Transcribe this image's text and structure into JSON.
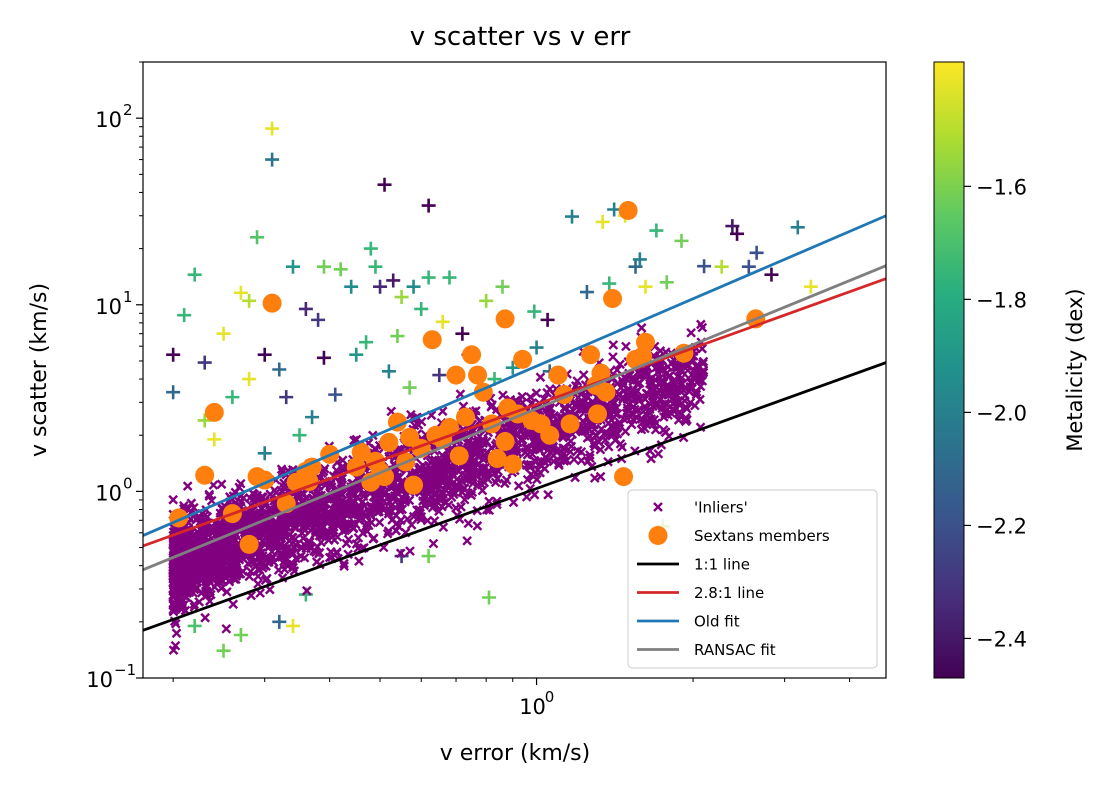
{
  "chart_data": {
    "type": "scatter",
    "title": "v scatter vs v err",
    "xlabel": "v error (km/s)",
    "ylabel": "v scatter (km/s)",
    "xscale": "log",
    "yscale": "log",
    "xlim": [
      0.175,
      4.7
    ],
    "ylim": [
      0.1,
      200
    ],
    "grid": false,
    "legend_position": "lower-right",
    "x_ticks": [
      {
        "value": 1.0,
        "base": "10",
        "exp": "0"
      }
    ],
    "y_ticks": [
      {
        "value": 0.1,
        "base": "10",
        "exp": "−1"
      },
      {
        "value": 1.0,
        "base": "10",
        "exp": "0"
      },
      {
        "value": 10.0,
        "base": "10",
        "exp": "1"
      },
      {
        "value": 100.0,
        "base": "10",
        "exp": "2"
      }
    ],
    "colorbar": {
      "label": "Metalicity (dex)",
      "colormap": "viridis",
      "range": [
        -2.47,
        -1.38
      ],
      "ticks": [
        {
          "value": -2.4,
          "label": "−2.4"
        },
        {
          "value": -2.2,
          "label": "−2.2"
        },
        {
          "value": -2.0,
          "label": "−2.0"
        },
        {
          "value": -1.8,
          "label": "−1.8"
        },
        {
          "value": -1.6,
          "label": "−1.6"
        }
      ]
    },
    "colors": {
      "inliers": "#800080",
      "members": "#ff7f0e",
      "one_to_one": "#000000",
      "ratio_line": "#d62728",
      "old_fit": "#1f77b4",
      "ransac_fit": "#7f7f7f"
    },
    "lines": [
      {
        "name": "1:1 line",
        "color": "#000000",
        "points": [
          [
            0.175,
            0.18
          ],
          [
            4.7,
            4.9
          ]
        ]
      },
      {
        "name": "2.8:1 line",
        "color": "#d62728",
        "points": [
          [
            0.175,
            0.51
          ],
          [
            4.7,
            13.8
          ]
        ]
      },
      {
        "name": "Old fit",
        "color": "#1f77b4",
        "points": [
          [
            0.175,
            0.58
          ],
          [
            4.7,
            30.0
          ]
        ]
      },
      {
        "name": "RANSAC fit",
        "color": "#7f7f7f",
        "points": [
          [
            0.175,
            0.38
          ],
          [
            4.7,
            16.2
          ]
        ]
      }
    ],
    "legend": [
      {
        "label": "'Inliers'",
        "marker": "x",
        "color": "#800080"
      },
      {
        "label": "Sextans members",
        "marker": "o",
        "color": "#ff7f0e"
      },
      {
        "label": "1:1 line",
        "marker": "line",
        "color": "#000000"
      },
      {
        "label": "2.8:1 line",
        "marker": "line",
        "color": "#d62728"
      },
      {
        "label": "Old fit",
        "marker": "line",
        "color": "#1f77b4"
      },
      {
        "label": "RANSAC fit",
        "marker": "line",
        "color": "#7f7f7f"
      }
    ],
    "inliers_band": {
      "name": "'Inliers'",
      "x_range": [
        0.2,
        2.1
      ],
      "y_over_x_log10_mean": 0.3,
      "log10_spread": 0.13,
      "approx_count": 2600
    },
    "outliers": [
      [
        0.31,
        88,
        -1.42
      ],
      [
        0.31,
        60,
        -2.05
      ],
      [
        0.51,
        44,
        -2.47
      ],
      [
        0.62,
        34,
        -2.47
      ],
      [
        0.29,
        23,
        -1.68
      ],
      [
        0.68,
        14,
        -1.75
      ],
      [
        0.72,
        7,
        -2.47
      ],
      [
        0.2,
        5.4,
        -2.47
      ],
      [
        0.22,
        14.5,
        -1.75
      ],
      [
        0.21,
        8.8,
        -1.75
      ],
      [
        0.25,
        7,
        -1.42
      ],
      [
        0.27,
        11.6,
        -1.42
      ],
      [
        0.28,
        10.5,
        -1.5
      ],
      [
        0.34,
        16,
        -1.9
      ],
      [
        0.36,
        9.5,
        -2.35
      ],
      [
        0.38,
        8.3,
        -2.3
      ],
      [
        0.39,
        16,
        -1.62
      ],
      [
        0.42,
        15.5,
        -1.62
      ],
      [
        0.44,
        12.5,
        -1.95
      ],
      [
        0.48,
        20,
        -1.75
      ],
      [
        0.49,
        16,
        -1.75
      ],
      [
        0.5,
        12.5,
        -2.35
      ],
      [
        0.53,
        13.5,
        -2.4
      ],
      [
        0.55,
        11,
        -1.55
      ],
      [
        0.58,
        12.5,
        -1.95
      ],
      [
        0.6,
        9.5,
        -1.75
      ],
      [
        0.62,
        14,
        -1.75
      ],
      [
        0.66,
        8.1,
        -1.42
      ],
      [
        0.8,
        10.5,
        -1.55
      ],
      [
        0.86,
        12.5,
        -1.62
      ],
      [
        0.99,
        9.2,
        -1.75
      ],
      [
        1.05,
        8.3,
        -2.47
      ],
      [
        1.17,
        29.7,
        -2.0
      ],
      [
        1.25,
        11.7,
        -2.1
      ],
      [
        1.34,
        27.8,
        -1.42
      ],
      [
        1.38,
        13,
        -1.75
      ],
      [
        1.41,
        32.4,
        -2.0
      ],
      [
        1.48,
        30,
        -1.42
      ],
      [
        1.55,
        16,
        -2.1
      ],
      [
        1.58,
        17.5,
        -2.0
      ],
      [
        1.62,
        12.5,
        -1.42
      ],
      [
        1.7,
        25,
        -1.75
      ],
      [
        1.78,
        13.2,
        -1.62
      ],
      [
        1.9,
        22,
        -1.62
      ],
      [
        2.1,
        16.1,
        -2.2
      ],
      [
        2.27,
        16,
        -1.5
      ],
      [
        2.38,
        26.4,
        -2.4
      ],
      [
        2.43,
        24,
        -2.47
      ],
      [
        2.56,
        16,
        -2.2
      ],
      [
        2.65,
        19,
        -2.2
      ],
      [
        2.83,
        14.5,
        -2.47
      ],
      [
        3.18,
        26,
        -2.0
      ],
      [
        3.37,
        12.5,
        -1.42
      ],
      [
        0.22,
        0.19,
        -1.7
      ],
      [
        0.25,
        0.14,
        -1.62
      ],
      [
        0.27,
        0.17,
        -1.62
      ],
      [
        0.32,
        0.2,
        -2.1
      ],
      [
        0.34,
        0.19,
        -1.42
      ],
      [
        0.36,
        0.28,
        -1.75
      ],
      [
        0.55,
        0.45,
        -2.3
      ],
      [
        0.62,
        0.45,
        -1.62
      ],
      [
        0.81,
        0.27,
        -1.62
      ],
      [
        1.75,
        0.65,
        -1.55
      ],
      [
        0.2,
        3.4,
        -2.1
      ],
      [
        0.23,
        2.4,
        -1.55
      ],
      [
        0.26,
        3.2,
        -1.75
      ],
      [
        0.28,
        4,
        -1.42
      ],
      [
        0.3,
        5.4,
        -2.47
      ],
      [
        0.33,
        3.2,
        -2.3
      ],
      [
        0.37,
        2.5,
        -2.0
      ],
      [
        0.41,
        3.3,
        -2.2
      ],
      [
        0.45,
        5.4,
        -1.9
      ],
      [
        0.47,
        6.3,
        -1.75
      ],
      [
        0.52,
        4.4,
        -2.0
      ],
      [
        0.57,
        3.6,
        -1.62
      ],
      [
        0.65,
        4.2,
        -2.3
      ],
      [
        0.74,
        5.4,
        -2.47
      ],
      [
        0.9,
        4.6,
        -1.9
      ],
      [
        1.06,
        4.4,
        -2.1
      ],
      [
        1.2,
        3.4,
        -1.62
      ],
      [
        0.24,
        1.9,
        -1.42
      ],
      [
        0.3,
        1.6,
        -2.0
      ],
      [
        0.35,
        2.0,
        -1.75
      ],
      [
        0.44,
        1.4,
        -1.62
      ],
      [
        0.23,
        4.9,
        -2.3
      ],
      [
        0.32,
        4.5,
        -2.1
      ],
      [
        0.39,
        5.2,
        -2.47
      ],
      [
        0.54,
        6.8,
        -1.62
      ],
      [
        0.83,
        4.0,
        -1.75
      ],
      [
        1.0,
        5.9,
        -2.0
      ]
    ],
    "members": [
      [
        0.205,
        0.72
      ],
      [
        0.23,
        1.22
      ],
      [
        0.24,
        2.65
      ],
      [
        0.26,
        0.76
      ],
      [
        0.28,
        0.52
      ],
      [
        0.29,
        1.2
      ],
      [
        0.3,
        1.15
      ],
      [
        0.31,
        10.2
      ],
      [
        0.33,
        0.86
      ],
      [
        0.345,
        1.12
      ],
      [
        0.36,
        1.28
      ],
      [
        0.365,
        1.13
      ],
      [
        0.37,
        1.35
      ],
      [
        0.4,
        1.58
      ],
      [
        0.45,
        1.35
      ],
      [
        0.46,
        1.62
      ],
      [
        0.48,
        1.12
      ],
      [
        0.49,
        1.45
      ],
      [
        0.5,
        1.28
      ],
      [
        0.51,
        1.2
      ],
      [
        0.52,
        1.83
      ],
      [
        0.54,
        2.35
      ],
      [
        0.56,
        1.44
      ],
      [
        0.57,
        1.95
      ],
      [
        0.58,
        1.08
      ],
      [
        0.6,
        1.7
      ],
      [
        0.63,
        6.5
      ],
      [
        0.64,
        2.0
      ],
      [
        0.66,
        1.9
      ],
      [
        0.68,
        2.2
      ],
      [
        0.7,
        4.2
      ],
      [
        0.71,
        1.55
      ],
      [
        0.73,
        2.5
      ],
      [
        0.75,
        5.4
      ],
      [
        0.77,
        4.2
      ],
      [
        0.79,
        3.4
      ],
      [
        0.82,
        2.3
      ],
      [
        0.84,
        1.5
      ],
      [
        0.87,
        8.4
      ],
      [
        0.87,
        1.85
      ],
      [
        0.88,
        2.8
      ],
      [
        0.9,
        1.4
      ],
      [
        0.92,
        2.6
      ],
      [
        0.94,
        5.1
      ],
      [
        0.98,
        2.4
      ],
      [
        1.02,
        2.3
      ],
      [
        1.06,
        2.0
      ],
      [
        1.1,
        4.2
      ],
      [
        1.13,
        3.3
      ],
      [
        1.16,
        2.3
      ],
      [
        1.27,
        5.4
      ],
      [
        1.3,
        3.7
      ],
      [
        1.31,
        2.6
      ],
      [
        1.33,
        4.3
      ],
      [
        1.36,
        3.4
      ],
      [
        1.4,
        10.8
      ],
      [
        1.47,
        1.2
      ],
      [
        1.5,
        32.0
      ],
      [
        1.55,
        5.1
      ],
      [
        1.6,
        5.3
      ],
      [
        1.62,
        6.3
      ],
      [
        1.92,
        5.5
      ],
      [
        2.64,
        8.4
      ]
    ]
  }
}
